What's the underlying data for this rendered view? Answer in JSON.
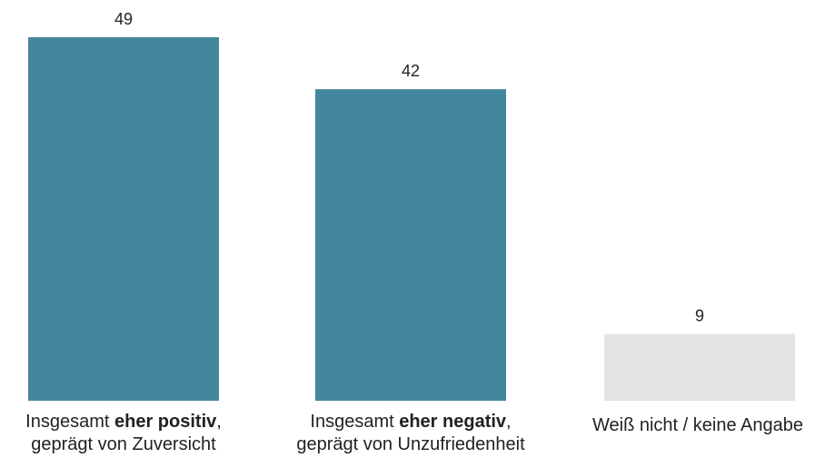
{
  "chart_data": {
    "type": "bar",
    "categories": [
      {
        "pre": "Insgesamt ",
        "bold": "eher positiv",
        "post": ",",
        "line2": "geprägt von Zuversicht"
      },
      {
        "pre": "Insgesamt ",
        "bold": "eher negativ",
        "post": ",",
        "line2": "geprägt von Unzufriedenheit"
      },
      {
        "pre": "Weiß nicht / keine Angabe",
        "bold": "",
        "post": "",
        "line2": ""
      }
    ],
    "values": [
      49,
      42,
      9
    ],
    "data_labels": [
      "49",
      "42",
      "9"
    ],
    "colors": [
      "#44879c",
      "#44879c",
      "#e3e3e3"
    ],
    "ylim": [
      0,
      49
    ],
    "title": "",
    "xlabel": "",
    "ylabel": "",
    "grid": false,
    "legend": "none"
  }
}
